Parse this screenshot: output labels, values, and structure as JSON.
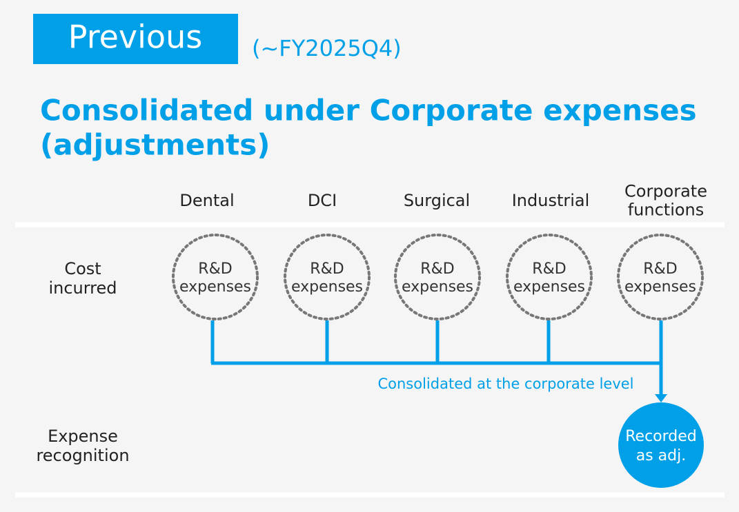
{
  "header": {
    "badge": "Previous",
    "period": "(~FY2025Q4)"
  },
  "title": [
    "Consolidated under Corporate expenses",
    "(adjustments)"
  ],
  "rows": [
    [
      "Cost",
      "incurred"
    ],
    [
      "Expense",
      "recognition"
    ]
  ],
  "columns": [
    {
      "label": [
        "Dental"
      ],
      "node": [
        "R&D",
        "expenses"
      ]
    },
    {
      "label": [
        "DCI"
      ],
      "node": [
        "R&D",
        "expenses"
      ]
    },
    {
      "label": [
        "Surgical"
      ],
      "node": [
        "R&D",
        "expenses"
      ]
    },
    {
      "label": [
        "Industrial"
      ],
      "node": [
        "R&D",
        "expenses"
      ]
    },
    {
      "label": [
        "Corporate",
        "functions"
      ],
      "node": [
        "R&D",
        "expenses"
      ]
    }
  ],
  "flow_label": "Consolidated at the corporate level",
  "result": [
    "Recorded",
    "as adj."
  ]
}
